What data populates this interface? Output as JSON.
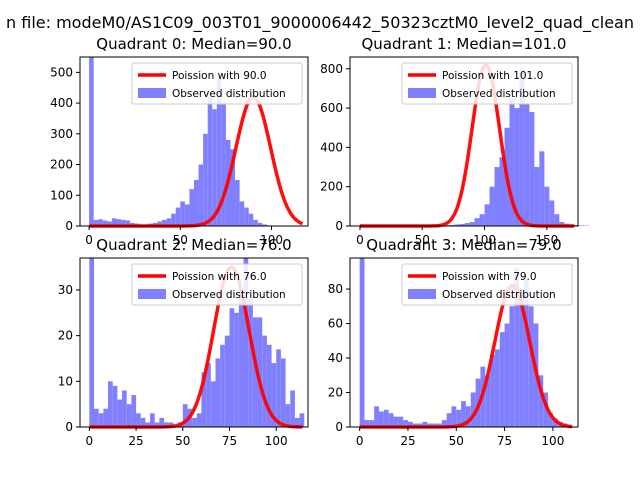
{
  "figure": {
    "suptitle": "n file: modeM0/AS1C09_003T01_9000006442_50323cztM0_level2_quad_clean"
  },
  "chart_data": [
    {
      "type": "histogram",
      "title": "Quadrant 0: Median=90.0",
      "median": 90.0,
      "xlim": [
        -5,
        120
      ],
      "ylim": [
        0,
        550
      ],
      "xticks": [
        0,
        50,
        100
      ],
      "yticks": [
        0,
        100,
        200,
        300,
        400,
        500
      ],
      "bin_start": 0,
      "bin_width": 2.5,
      "observed_counts": [
        550,
        20,
        22,
        18,
        15,
        25,
        22,
        20,
        18,
        10,
        8,
        5,
        5,
        8,
        10,
        15,
        20,
        25,
        40,
        60,
        80,
        70,
        120,
        150,
        200,
        300,
        420,
        380,
        480,
        400,
        280,
        250,
        150,
        80,
        60,
        40,
        20,
        10,
        5,
        2
      ],
      "fit_peak": 420,
      "fit_sigma": 9.5,
      "legend": {
        "fit": "Poission with 90.0",
        "observed": "Observed distribution"
      },
      "colors": {
        "fit": "#ff0000",
        "observed": "#8080ff"
      }
    },
    {
      "type": "histogram",
      "title": "Quadrant 1: Median=101.0",
      "median": 101.0,
      "xlim": [
        -8,
        175
      ],
      "ylim": [
        0,
        860
      ],
      "xticks": [
        0,
        50,
        100,
        150
      ],
      "yticks": [
        0,
        200,
        400,
        600,
        800
      ],
      "bin_start": 0,
      "bin_width": 4,
      "observed_counts": [
        5,
        4,
        3,
        3,
        2,
        2,
        2,
        2,
        3,
        3,
        3,
        2,
        2,
        3,
        4,
        3,
        3,
        4,
        5,
        8,
        10,
        15,
        20,
        40,
        60,
        110,
        200,
        300,
        350,
        500,
        650,
        600,
        800,
        620,
        580,
        300,
        380,
        200,
        130,
        60,
        20,
        12,
        8,
        5,
        3,
        2
      ],
      "fit_peak": 820,
      "fit_sigma": 11,
      "legend": {
        "fit": "Poission with 101.0",
        "observed": "Observed distribution"
      },
      "colors": {
        "fit": "#ff0000",
        "observed": "#8080ff"
      }
    },
    {
      "type": "histogram",
      "title": "Quadrant 2: Median=76.0",
      "median": 76.0,
      "xlim": [
        -5,
        117
      ],
      "ylim": [
        0,
        37
      ],
      "xticks": [
        0,
        25,
        50,
        75,
        100
      ],
      "yticks": [
        0,
        10,
        20,
        30
      ],
      "bin_start": 0,
      "bin_width": 2.5,
      "observed_counts": [
        37,
        4,
        3,
        4,
        10,
        9,
        6,
        8,
        5,
        7,
        3,
        2,
        1,
        3,
        1,
        2,
        1,
        1,
        0,
        1,
        5,
        4,
        2,
        3,
        12,
        14,
        10,
        15,
        18,
        20,
        26,
        25,
        30,
        38,
        28,
        24,
        24,
        20,
        18,
        14,
        17,
        15,
        5,
        8,
        2,
        3
      ],
      "fit_peak": 35,
      "fit_sigma": 9.5,
      "legend": {
        "fit": "Poission with 76.0",
        "observed": "Observed distribution"
      },
      "colors": {
        "fit": "#ff0000",
        "observed": "#8080ff"
      }
    },
    {
      "type": "histogram",
      "title": "Quadrant 3: Median=79.0",
      "median": 79.0,
      "xlim": [
        -5,
        113
      ],
      "ylim": [
        0,
        98
      ],
      "xticks": [
        0,
        25,
        50,
        75,
        100
      ],
      "yticks": [
        0,
        20,
        40,
        60,
        80
      ],
      "bin_start": 0,
      "bin_width": 2.5,
      "observed_counts": [
        98,
        4,
        4,
        12,
        9,
        10,
        8,
        6,
        6,
        4,
        3,
        2,
        2,
        3,
        2,
        2,
        2,
        4,
        8,
        12,
        10,
        15,
        12,
        20,
        28,
        35,
        30,
        42,
        45,
        55,
        60,
        70,
        92,
        80,
        85,
        70,
        60,
        30,
        20,
        8,
        5,
        3,
        2
      ],
      "fit_peak": 82,
      "fit_sigma": 9,
      "legend": {
        "fit": "Poission with 79.0",
        "observed": "Observed distribution"
      },
      "colors": {
        "fit": "#ff0000",
        "observed": "#8080ff"
      }
    }
  ]
}
